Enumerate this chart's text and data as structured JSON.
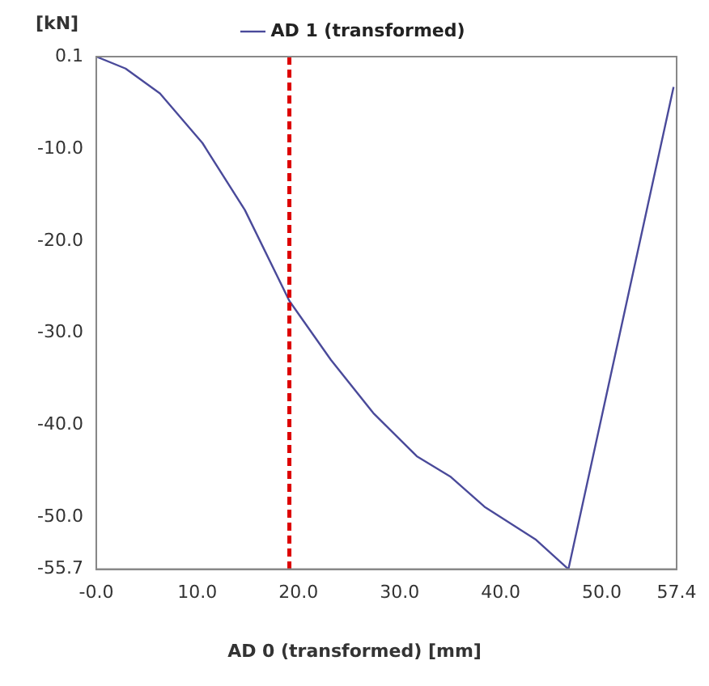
{
  "chart_data": {
    "type": "line",
    "xlabel": "AD 0 (transformed) [mm]",
    "ylabel": "[kN]",
    "legend": "top",
    "marker": "none",
    "line_style": "solid",
    "xlim": [
      0,
      57.4
    ],
    "ylim": [
      -55.7,
      0.1
    ],
    "xticks": [
      {
        "value": 0,
        "label": "-0.0"
      },
      {
        "value": 10,
        "label": "10.0"
      },
      {
        "value": 20,
        "label": "20.0"
      },
      {
        "value": 30,
        "label": "30.0"
      },
      {
        "value": 40,
        "label": "40.0"
      },
      {
        "value": 50,
        "label": "50.0"
      },
      57.4
    ],
    "yticks": [
      0.1,
      {
        "value": -10,
        "label": "-10.0"
      },
      {
        "value": -20,
        "label": "-20.0"
      },
      {
        "value": -30,
        "label": "-30.0"
      },
      {
        "value": -40,
        "label": "-40.0"
      },
      {
        "value": -50,
        "label": "-50.0"
      },
      -55.7
    ],
    "ref_lines": [
      {
        "axis": "x",
        "value": 19.1,
        "color": "#dd0000",
        "line_style": "dashed"
      }
    ],
    "series": [
      {
        "name": "AD 1 (transformed)",
        "color": "#4a4a9a",
        "x": [
          0,
          2.9,
          6.3,
          10.5,
          14.7,
          19.1,
          23.2,
          27.4,
          31.7,
          35,
          38.4,
          43.5,
          46.7,
          57.1
        ],
        "values": [
          0.1,
          -1.2,
          -3.9,
          -9.3,
          -16.6,
          -26.5,
          -32.9,
          -38.7,
          -43.4,
          -45.6,
          -48.9,
          -52.5,
          -55.7,
          -3.2
        ]
      }
    ]
  }
}
